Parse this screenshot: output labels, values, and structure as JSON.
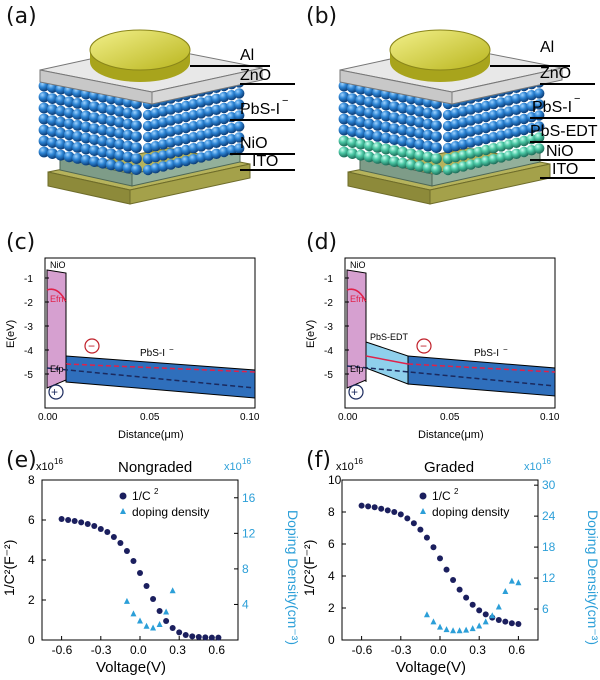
{
  "panels": {
    "a": "(a)",
    "b": "(b)",
    "c": "(c)",
    "d": "(d)",
    "e": "(e)",
    "f": "(f)"
  },
  "device_a": {
    "layers": [
      "Al",
      "ZnO",
      "PbS-I",
      "NiO",
      "ITO"
    ]
  },
  "device_b": {
    "layers": [
      "Al",
      "ZnO",
      "PbS-I",
      "PbS-EDT",
      "NiO",
      "ITO"
    ]
  },
  "superscript_minus": "−",
  "band_c": {
    "ylabel": "E(eV)",
    "xlabel": "Distance(μm)",
    "yticks": [
      "-1",
      "-2",
      "-3",
      "-4",
      "-5"
    ],
    "xticks": [
      "0.00",
      "0.05",
      "0.10"
    ],
    "nio": "NiO",
    "efn": "Efn",
    "efp": "Efp",
    "pbs": "PbS-I",
    "plus": "+",
    "minus": "−"
  },
  "band_d": {
    "ylabel": "E(eV)",
    "xlabel": "Distance(μm)",
    "yticks": [
      "-1",
      "-2",
      "-3",
      "-4",
      "-5"
    ],
    "xticks": [
      "0.00",
      "0.05",
      "0.10"
    ],
    "nio": "NiO",
    "efn": "Efn",
    "efp": "Efp",
    "edt": "PbS-EDT",
    "pbs": "PbS-I",
    "plus": "+",
    "minus": "−"
  },
  "cv_e": {
    "title": "Nongraded",
    "left_mult": "x10",
    "left_exp": "16",
    "right_mult": "x10",
    "right_exp": "16",
    "ylabel": "1/C²(F⁻²)",
    "ylabel_right": "Doping Density(cm⁻³)",
    "xlabel": "Voltage(V)",
    "legend_c": "1/C",
    "legend_c_sup": "2",
    "legend_d": "doping density",
    "yticks": [
      "0",
      "2",
      "4",
      "6",
      "8"
    ],
    "ryticks": [
      "4",
      "8",
      "12",
      "16"
    ],
    "xticks": [
      "-0.6",
      "-0.3",
      "0.0",
      "0.3",
      "0.6"
    ]
  },
  "cv_f": {
    "title": "Graded",
    "left_mult": "x10",
    "left_exp": "16",
    "right_mult": "x10",
    "right_exp": "16",
    "ylabel": "1/C²(F⁻²)",
    "ylabel_right": "Doping Density(cm⁻³)",
    "xlabel": "Voltage(V)",
    "legend_c": "1/C",
    "legend_c_sup": "2",
    "legend_d": "doping density",
    "yticks": [
      "0",
      "2",
      "4",
      "6",
      "8",
      "10"
    ],
    "ryticks": [
      "6",
      "12",
      "18",
      "24",
      "30"
    ],
    "xticks": [
      "-0.6",
      "-0.3",
      "0.0",
      "0.3",
      "0.6"
    ]
  },
  "chart_data": [
    {
      "type": "scatter",
      "title": "Nongraded",
      "xlabel": "Voltage(V)",
      "ylabel": "1/C²(F⁻²)",
      "ylim": [
        0,
        8
      ],
      "xlim": [
        -0.75,
        0.75
      ],
      "series": [
        {
          "name": "1/C2",
          "x": [
            -0.6,
            -0.55,
            -0.5,
            -0.45,
            -0.4,
            -0.35,
            -0.3,
            -0.25,
            -0.2,
            -0.15,
            -0.1,
            -0.05,
            0.0,
            0.05,
            0.1,
            0.15,
            0.2,
            0.25,
            0.3,
            0.35,
            0.4,
            0.45,
            0.5,
            0.55,
            0.6
          ],
          "y": [
            6.05,
            6.0,
            5.95,
            5.88,
            5.8,
            5.7,
            5.55,
            5.4,
            5.15,
            4.85,
            4.45,
            3.95,
            3.35,
            2.7,
            2.05,
            1.45,
            0.95,
            0.6,
            0.38,
            0.25,
            0.18,
            0.15,
            0.13,
            0.12,
            0.12
          ]
        },
        {
          "name": "doping density",
          "axis": "right",
          "x": [
            -0.1,
            -0.05,
            0.0,
            0.05,
            0.1,
            0.15,
            0.2,
            0.25
          ],
          "y": [
            4.4,
            3.0,
            2.2,
            1.6,
            1.4,
            1.8,
            3.2,
            5.6
          ]
        }
      ]
    },
    {
      "type": "scatter",
      "title": "Graded",
      "xlabel": "Voltage(V)",
      "ylabel": "1/C²(F⁻²)",
      "ylim": [
        0,
        10
      ],
      "xlim": [
        -0.75,
        0.75
      ],
      "series": [
        {
          "name": "1/C2",
          "x": [
            -0.6,
            -0.55,
            -0.5,
            -0.45,
            -0.4,
            -0.35,
            -0.3,
            -0.25,
            -0.2,
            -0.15,
            -0.1,
            -0.05,
            0.0,
            0.05,
            0.1,
            0.15,
            0.2,
            0.25,
            0.3,
            0.35,
            0.4,
            0.45,
            0.5,
            0.55,
            0.6
          ],
          "y": [
            8.4,
            8.35,
            8.3,
            8.2,
            8.1,
            8.0,
            7.85,
            7.6,
            7.3,
            6.9,
            6.4,
            5.8,
            5.1,
            4.4,
            3.75,
            3.15,
            2.65,
            2.2,
            1.85,
            1.6,
            1.4,
            1.25,
            1.15,
            1.05,
            1.0
          ]
        },
        {
          "name": "doping density",
          "axis": "right",
          "x": [
            -0.1,
            -0.05,
            0.0,
            0.05,
            0.1,
            0.15,
            0.2,
            0.25,
            0.3,
            0.35,
            0.4,
            0.45,
            0.5,
            0.55,
            0.6
          ],
          "y": [
            5.0,
            3.6,
            2.6,
            2.1,
            1.9,
            1.9,
            2.0,
            2.3,
            2.8,
            3.6,
            4.8,
            6.5,
            9.5,
            11.5,
            11.2
          ]
        }
      ]
    }
  ]
}
